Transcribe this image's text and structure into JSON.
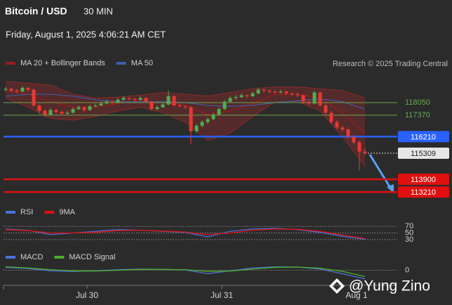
{
  "header": {
    "title": "Bitcoin / USD",
    "interval": "30 MIN",
    "datetime": "Friday, August 1, 2025 4:06:21 AM CET",
    "credit": "Research © 2025 Trading Central",
    "watermark": "@Yung Zino"
  },
  "chart_data": [
    {
      "type": "candlestick",
      "xlim": [
        -0.375,
        64.5
      ],
      "ylim": [
        112800,
        119800
      ],
      "up_color": "#4caf50",
      "down_color": "#e53935",
      "ohlc": [
        [
          118750,
          118900,
          118650,
          118800
        ],
        [
          118800,
          118850,
          118600,
          118700
        ],
        [
          118700,
          118780,
          118550,
          118650
        ],
        [
          118650,
          118950,
          118600,
          118850
        ],
        [
          118850,
          118900,
          118650,
          118750
        ],
        [
          118750,
          118800,
          117800,
          117900
        ],
        [
          117900,
          117950,
          117450,
          117600
        ],
        [
          117600,
          117700,
          117250,
          117400
        ],
        [
          117400,
          117750,
          117350,
          117650
        ],
        [
          117650,
          117700,
          117450,
          117550
        ],
        [
          117550,
          117600,
          117350,
          117450
        ],
        [
          117450,
          117600,
          117400,
          117500
        ],
        [
          117500,
          117800,
          117450,
          117700
        ],
        [
          117700,
          117900,
          117650,
          117800
        ],
        [
          117800,
          117850,
          117550,
          117650
        ],
        [
          117650,
          117950,
          117600,
          117850
        ],
        [
          117850,
          118000,
          117800,
          117900
        ],
        [
          117900,
          118100,
          117850,
          118000
        ],
        [
          118000,
          118200,
          117950,
          118100
        ],
        [
          118100,
          118150,
          117950,
          118050
        ],
        [
          118050,
          118300,
          118000,
          118200
        ],
        [
          118200,
          118400,
          118150,
          118300
        ],
        [
          118300,
          118350,
          118150,
          118250
        ],
        [
          118250,
          118300,
          118100,
          118200
        ],
        [
          118200,
          118400,
          118150,
          118300
        ],
        [
          118300,
          118350,
          118050,
          118100
        ],
        [
          118100,
          118150,
          117600,
          117700
        ],
        [
          117700,
          117900,
          117650,
          117800
        ],
        [
          117800,
          118050,
          117750,
          117950
        ],
        [
          117950,
          118700,
          117900,
          118400
        ],
        [
          118400,
          118450,
          117850,
          117900
        ],
        [
          117900,
          118000,
          117800,
          117850
        ],
        [
          117850,
          117900,
          117700,
          117800
        ],
        [
          117800,
          117850,
          115800,
          116500
        ],
        [
          116500,
          116900,
          116400,
          116800
        ],
        [
          116800,
          117100,
          116700,
          117000
        ],
        [
          117000,
          117250,
          116900,
          117150
        ],
        [
          117150,
          117500,
          117100,
          117400
        ],
        [
          117400,
          117800,
          117350,
          117700
        ],
        [
          117700,
          118200,
          117650,
          118100
        ],
        [
          118100,
          118400,
          118050,
          118300
        ],
        [
          118300,
          118450,
          118200,
          118350
        ],
        [
          118350,
          118550,
          118300,
          118450
        ],
        [
          118450,
          118500,
          118300,
          118400
        ],
        [
          118400,
          118650,
          118350,
          118550
        ],
        [
          118550,
          118850,
          118500,
          118750
        ],
        [
          118750,
          118800,
          118600,
          118700
        ],
        [
          118700,
          118750,
          118550,
          118650
        ],
        [
          118650,
          118700,
          118500,
          118600
        ],
        [
          118600,
          118750,
          118550,
          118650
        ],
        [
          118650,
          118700,
          118450,
          118550
        ],
        [
          118550,
          118600,
          118400,
          118500
        ],
        [
          118500,
          118600,
          118350,
          118450
        ],
        [
          118450,
          118500,
          118000,
          118100
        ],
        [
          118100,
          118200,
          117900,
          118000
        ],
        [
          118000,
          118700,
          117950,
          118600
        ],
        [
          118600,
          118650,
          117800,
          117900
        ],
        [
          117900,
          118000,
          117400,
          117500
        ],
        [
          117500,
          117600,
          116900,
          117000
        ],
        [
          117000,
          117100,
          116600,
          116700
        ],
        [
          116700,
          116800,
          116500,
          116600
        ],
        [
          116600,
          116700,
          116100,
          116200
        ],
        [
          116200,
          116300,
          115800,
          115900
        ],
        [
          115900,
          116000,
          114350,
          115400
        ],
        [
          115400,
          115600,
          115200,
          115309
        ]
      ],
      "series": [
        {
          "name": "MA 20 + Bollinger Bands",
          "color": "#9b1c1c",
          "band_color": "#8a2a2a",
          "x": [
            0,
            4,
            8,
            12,
            16,
            20,
            24,
            28,
            32,
            36,
            40,
            44,
            48,
            52,
            56,
            60,
            64
          ],
          "values": [
            118700,
            118500,
            118100,
            117800,
            117800,
            118000,
            118150,
            118050,
            117900,
            117400,
            117600,
            118000,
            118500,
            118500,
            118300,
            117500,
            116400
          ],
          "upper": [
            119200,
            119100,
            119000,
            118500,
            118300,
            118350,
            118450,
            118600,
            118500,
            118400,
            118600,
            118800,
            118900,
            118900,
            118800,
            118700,
            118300
          ],
          "lower": [
            118300,
            117800,
            117200,
            117100,
            117300,
            117600,
            117800,
            117500,
            117000,
            116000,
            116400,
            117300,
            118100,
            118100,
            117600,
            116200,
            114600
          ]
        },
        {
          "name": "MA 50",
          "color": "#3d5ea8",
          "x": [
            0,
            4,
            8,
            12,
            16,
            20,
            24,
            28,
            32,
            36,
            40,
            44,
            48,
            52,
            56,
            60,
            64
          ],
          "values": [
            118400,
            118500,
            118500,
            118400,
            118200,
            118100,
            118100,
            118100,
            118050,
            117900,
            117850,
            117900,
            118050,
            118150,
            118250,
            118100,
            117700
          ]
        }
      ],
      "levels": [
        {
          "value": 118050,
          "color": "#6aa84f",
          "label_box": false
        },
        {
          "value": 117370,
          "color": "#6aa84f",
          "label_box": false
        },
        {
          "value": 116210,
          "color": "#2962ff",
          "label_box": true
        },
        {
          "value": 113900,
          "color": "#e01010",
          "label_box": true
        },
        {
          "value": 113210,
          "color": "#e01010",
          "label_box": true
        }
      ],
      "current": 115309
    },
    {
      "type": "line",
      "xlim": [
        -0.375,
        64.5
      ],
      "ylim": [
        0,
        100
      ],
      "yticks": [
        30,
        50,
        70
      ],
      "series": [
        {
          "name": "RSI",
          "color": "#4a72d8",
          "x": [
            0,
            4,
            8,
            12,
            16,
            20,
            24,
            28,
            32,
            36,
            40,
            44,
            48,
            52,
            56,
            60,
            64
          ],
          "values": [
            62,
            58,
            45,
            50,
            55,
            60,
            58,
            55,
            52,
            38,
            55,
            62,
            64,
            60,
            52,
            40,
            31
          ]
        },
        {
          "name": "9MA",
          "color": "#e01010",
          "x": [
            0,
            4,
            8,
            12,
            16,
            20,
            24,
            28,
            32,
            36,
            40,
            44,
            48,
            52,
            56,
            60,
            64
          ],
          "values": [
            60,
            57,
            50,
            50,
            52,
            57,
            58,
            56,
            53,
            45,
            50,
            58,
            62,
            61,
            55,
            44,
            33
          ]
        }
      ]
    },
    {
      "type": "line",
      "xlim": [
        -0.375,
        64.5
      ],
      "ylim": [
        -250,
        300
      ],
      "yticks": [
        0
      ],
      "xticks": [
        {
          "value": 14.5,
          "label": "Jul 30"
        },
        {
          "value": 38.5,
          "label": "Jul 31"
        },
        {
          "value": 62.5,
          "label": "Aug 1"
        }
      ],
      "series": [
        {
          "name": "MACD",
          "color": "#4a72d8",
          "x": [
            0,
            4,
            8,
            12,
            16,
            20,
            24,
            28,
            32,
            36,
            40,
            44,
            48,
            52,
            56,
            60,
            64
          ],
          "values": [
            50,
            30,
            -10,
            -20,
            -10,
            10,
            20,
            15,
            5,
            -60,
            -10,
            40,
            60,
            55,
            20,
            -60,
            -150
          ]
        },
        {
          "name": "MACD Signal",
          "color": "#4caf2a",
          "x": [
            0,
            4,
            8,
            12,
            16,
            20,
            24,
            28,
            32,
            36,
            40,
            44,
            48,
            52,
            56,
            60,
            64
          ],
          "values": [
            60,
            40,
            10,
            -10,
            -15,
            0,
            15,
            15,
            10,
            -20,
            -15,
            20,
            50,
            55,
            35,
            -20,
            -110
          ]
        }
      ]
    }
  ]
}
